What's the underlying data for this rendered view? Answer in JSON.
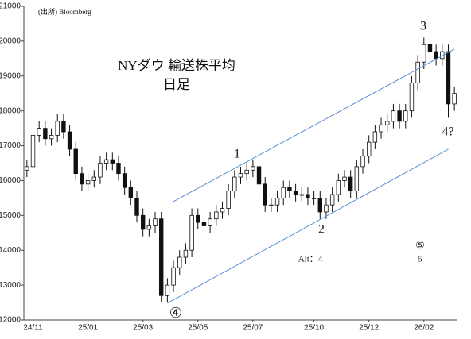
{
  "chart_data": {
    "type": "candlestick",
    "title": "NYダウ 輸送株平均",
    "subtitle": "日足",
    "source": "(出所) Bloomberg",
    "categories": [
      null,
      "24/11",
      null,
      null,
      null,
      null,
      null,
      null,
      null,
      null,
      "25/01",
      null,
      null,
      null,
      null,
      null,
      null,
      null,
      null,
      "25/03",
      null,
      null,
      null,
      null,
      null,
      null,
      null,
      null,
      "25/05",
      null,
      null,
      null,
      null,
      null,
      null,
      null,
      null,
      "25/07",
      null,
      null,
      null,
      null,
      null,
      null,
      null,
      null,
      null,
      "25/10",
      null,
      null,
      null,
      null,
      null,
      null,
      null,
      null,
      "25/12",
      null,
      null,
      null,
      null,
      null,
      null,
      null,
      null,
      "26/02",
      null,
      null,
      null,
      null,
      null
    ],
    "open": [
      16300,
      16400,
      17300,
      17500,
      17200,
      17300,
      17700,
      17400,
      16900,
      16200,
      15900,
      16000,
      16100,
      16500,
      16600,
      16500,
      16200,
      15800,
      15500,
      15000,
      14600,
      14700,
      14900,
      12700,
      13000,
      13500,
      13800,
      14000,
      15000,
      14800,
      14700,
      14900,
      15100,
      15200,
      15700,
      16100,
      16200,
      16300,
      16400,
      15900,
      15300,
      15300,
      15500,
      15800,
      15700,
      15600,
      15600,
      15500,
      15500,
      15100,
      15300,
      15600,
      16000,
      16100,
      15700,
      16400,
      16700,
      17100,
      17400,
      17600,
      17700,
      18000,
      17700,
      18000,
      18800,
      19400,
      19900,
      19700,
      19500,
      19700,
      18200
    ],
    "high": [
      16600,
      17500,
      17700,
      17700,
      17500,
      17900,
      17900,
      17600,
      17100,
      16400,
      16200,
      16300,
      16700,
      16800,
      16800,
      16700,
      16400,
      16000,
      15700,
      15200,
      14900,
      15100,
      15100,
      13200,
      13700,
      14000,
      14200,
      15200,
      15200,
      15000,
      15100,
      15300,
      15400,
      15900,
      16300,
      16400,
      16500,
      16600,
      16600,
      16100,
      15500,
      15700,
      16000,
      16000,
      15900,
      15800,
      15800,
      15700,
      15700,
      15500,
      15800,
      16200,
      16300,
      16300,
      16600,
      16900,
      17300,
      17600,
      17800,
      17900,
      18200,
      18200,
      18200,
      19000,
      19600,
      20100,
      20100,
      19900,
      19900,
      19900,
      18700
    ],
    "low": [
      16100,
      16200,
      17100,
      17000,
      17000,
      17100,
      17200,
      16700,
      16000,
      15700,
      15700,
      15800,
      15900,
      16300,
      16300,
      16000,
      15600,
      15300,
      14800,
      14400,
      14400,
      14500,
      12500,
      12500,
      12800,
      13300,
      13600,
      13800,
      14600,
      14500,
      14500,
      14700,
      14900,
      15000,
      15500,
      15900,
      16000,
      16100,
      15700,
      15100,
      15100,
      15100,
      15300,
      15500,
      15400,
      15400,
      15300,
      15300,
      14900,
      14900,
      15100,
      15400,
      15800,
      15500,
      15500,
      16200,
      16500,
      16900,
      17200,
      17400,
      17500,
      17500,
      17500,
      17800,
      18600,
      19200,
      19500,
      19300,
      19300,
      17800,
      18000
    ],
    "close": [
      16400,
      17300,
      17500,
      17200,
      17300,
      17700,
      17400,
      16900,
      16200,
      15900,
      16000,
      16100,
      16500,
      16600,
      16500,
      16200,
      15800,
      15500,
      15000,
      14600,
      14700,
      14900,
      12700,
      13000,
      13500,
      13800,
      14000,
      15000,
      14800,
      14700,
      14900,
      15100,
      15200,
      15700,
      16100,
      16200,
      16300,
      16400,
      15900,
      15300,
      15300,
      15500,
      15800,
      15700,
      15600,
      15600,
      15500,
      15500,
      15100,
      15300,
      15600,
      16000,
      16100,
      15700,
      16400,
      16700,
      17100,
      17400,
      17600,
      17700,
      18000,
      17700,
      18000,
      18800,
      19400,
      19900,
      19700,
      19500,
      19700,
      18200,
      18500
    ],
    "up_color": "#ffffff",
    "down_color": "#111111",
    "ylim": [
      12000,
      21000
    ],
    "yticks": [
      12000,
      13000,
      14000,
      15000,
      16000,
      17000,
      18000,
      19000,
      20000,
      21000
    ],
    "channels": [
      {
        "x": [
          24,
          70
        ],
        "y": [
          15400,
          19770
        ],
        "color": "#5b8fd0"
      },
      {
        "x": [
          23,
          69
        ],
        "y": [
          12480,
          16900
        ],
        "color": "#5b8fd0"
      }
    ],
    "annotations": [
      "1",
      "2",
      "3",
      "4?",
      "④",
      "⑤",
      "5",
      "Alt：4"
    ]
  }
}
